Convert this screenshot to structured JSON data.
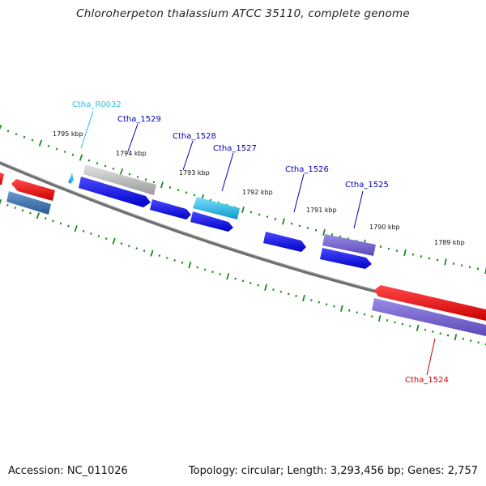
{
  "title": "Chloroherpeton thalassium ATCC 35110, complete genome",
  "accession": "Accession: NC_011026",
  "summary": "Topology: circular; Length: 3,293,456 bp; Genes: 2,757",
  "tick_labels": [
    "1795 kbp",
    "1794 kbp",
    "1793 kbp",
    "1792 kbp",
    "1791 kbp",
    "1790 kbp",
    "1789 kbp"
  ],
  "gene_labels": [
    {
      "text": "Ctha_R0032",
      "color": "#33bbdd"
    },
    {
      "text": "Ctha_1529",
      "color": "#0000bb"
    },
    {
      "text": "Ctha_1528",
      "color": "#0000bb"
    },
    {
      "text": "Ctha_1527",
      "color": "#0000bb"
    },
    {
      "text": "Ctha_1526",
      "color": "#0000bb"
    },
    {
      "text": "Ctha_1525",
      "color": "#0000bb"
    },
    {
      "text": "Ctha_1524",
      "color": "#cc0000"
    }
  ],
  "colors": {
    "backbone": "#777777",
    "tick": "#1a8a1a",
    "gene_blue": "#1010e0",
    "gene_red": "#ee1111",
    "gene_purple": "#6a5acd",
    "gene_steel": "#3a6aa0",
    "gene_gray": "#b8b8b8",
    "gene_cyan": "#19b8e8"
  }
}
